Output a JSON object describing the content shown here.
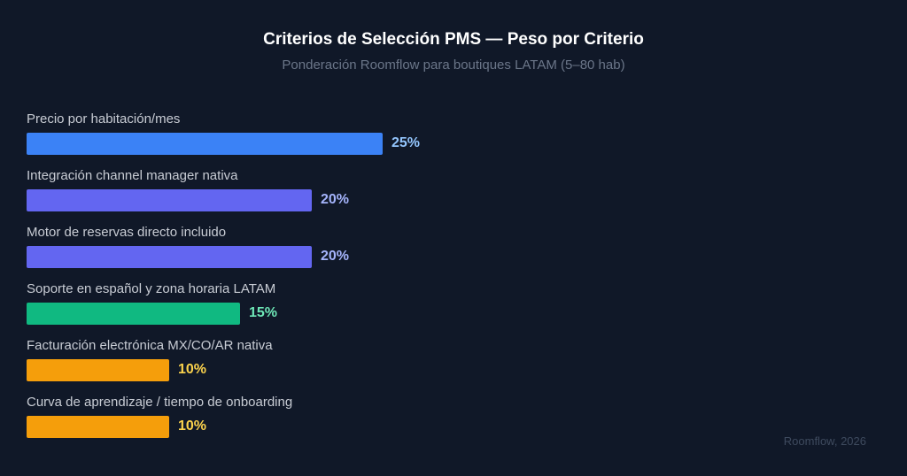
{
  "chart_data": {
    "type": "bar",
    "orientation": "horizontal",
    "title": "Criterios de Selección PMS — Peso por Criterio",
    "subtitle": "Ponderación Roomflow para boutiques LATAM (5–80 hab)",
    "categories": [
      "Precio por habitación/mes",
      "Integración channel manager nativa",
      "Motor de reservas directo incluido",
      "Soporte en español y zona horaria LATAM",
      "Facturación electrónica MX/CO/AR nativa",
      "Curva de aprendizaje / tiempo de onboarding"
    ],
    "values": [
      25,
      20,
      20,
      15,
      10,
      10
    ],
    "value_labels": [
      "25%",
      "20%",
      "20%",
      "15%",
      "10%",
      "10%"
    ],
    "bar_colors": [
      "#3b82f6",
      "#6366f1",
      "#6366f1",
      "#10b981",
      "#f59e0b",
      "#f59e0b"
    ],
    "label_colors": [
      "#93c5fd",
      "#a5b4fc",
      "#a5b4fc",
      "#6ee7b7",
      "#fcd34d",
      "#fcd34d"
    ],
    "xlim": [
      0,
      25
    ],
    "grid": false,
    "legend": "none"
  },
  "footer": {
    "source": "Roomflow, 2026"
  },
  "colors": {
    "background": "#101828"
  }
}
